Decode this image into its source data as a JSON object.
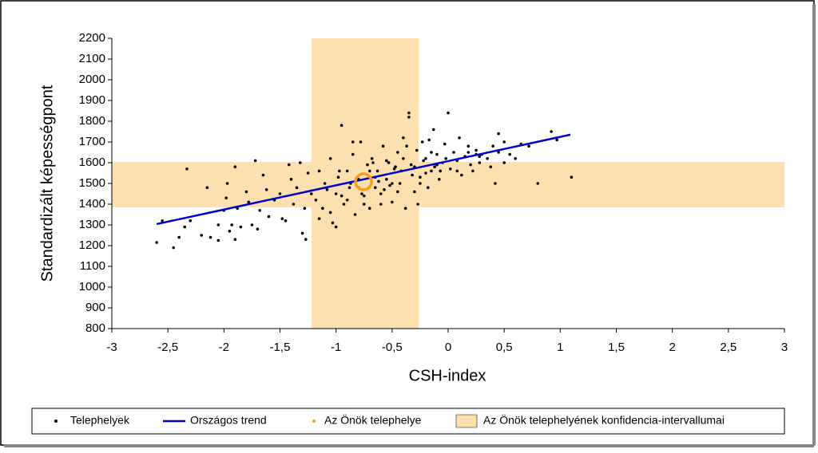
{
  "chart_data": {
    "type": "scatter",
    "xlabel": "CSH-index",
    "ylabel": "Standardizált képességpont",
    "xlim": [
      -3,
      3
    ],
    "ylim": [
      800,
      2200
    ],
    "xticks": [
      -3,
      {
        "value": -2.5,
        "label": "-2,5"
      },
      -2,
      {
        "value": -1.5,
        "label": "-1,5"
      },
      -1,
      {
        "value": -0.5,
        "label": "-0,5"
      },
      0,
      {
        "value": 0.5,
        "label": "0,5"
      },
      1,
      {
        "value": 1.5,
        "label": "1,5"
      },
      2,
      {
        "value": 2.5,
        "label": "2,5"
      },
      3
    ],
    "yticks": [
      800,
      900,
      1000,
      1100,
      1200,
      1300,
      1400,
      1500,
      1600,
      1700,
      1800,
      1900,
      2000,
      2100,
      2200
    ],
    "band": {
      "name": "Az Önök telephelyének konfidencia-intervallumai",
      "color": "#fde0b0",
      "x": [
        -1.22,
        -0.26
      ],
      "y": [
        1385,
        1604
      ]
    },
    "series": [
      {
        "name": "Telephelyek",
        "type": "scatter",
        "color": "#000000",
        "x": [
          -2.6,
          -2.55,
          -2.45,
          -2.4,
          -2.35,
          -2.33,
          -2.3,
          -2.2,
          -2.15,
          -2.12,
          -2.05,
          -2.05,
          -2.0,
          -1.98,
          -1.97,
          -1.95,
          -1.93,
          -1.9,
          -1.9,
          -1.88,
          -1.85,
          -1.8,
          -1.78,
          -1.75,
          -1.72,
          -1.7,
          -1.68,
          -1.65,
          -1.62,
          -1.6,
          -1.55,
          -1.5,
          -1.48,
          -1.45,
          -1.42,
          -1.4,
          -1.38,
          -1.35,
          -1.32,
          -1.3,
          -1.28,
          -1.27,
          -1.25,
          -1.22,
          -1.18,
          -1.15,
          -1.12,
          -1.1,
          -1.08,
          -1.05,
          -1.03,
          -1.0,
          -0.98,
          -0.95,
          -0.93,
          -0.9,
          -0.88,
          -0.85,
          -0.83,
          -0.8,
          -0.78,
          -0.75,
          -0.72,
          -0.7,
          -0.68,
          -0.65,
          -0.63,
          -0.6,
          -0.58,
          -0.55,
          -0.53,
          -0.5,
          -0.48,
          -0.45,
          -0.43,
          -0.4,
          -0.38,
          -0.35,
          -0.33,
          -0.3,
          -0.28,
          -0.25,
          -0.23,
          -0.2,
          -0.18,
          -0.15,
          -0.13,
          -0.1,
          -0.08,
          -0.05,
          -0.03,
          0.0,
          0.02,
          0.05,
          0.08,
          0.1,
          0.12,
          0.15,
          0.18,
          0.2,
          0.22,
          0.25,
          0.28,
          -1.15,
          -1.0,
          -0.9,
          -0.8,
          -0.7,
          -0.6,
          -0.5,
          -0.4,
          -0.3,
          -0.2,
          -0.1,
          -1.05,
          -0.95,
          -0.85,
          -0.75,
          -0.65,
          -0.55,
          -0.45,
          -0.35,
          -0.25,
          -0.15,
          -0.62,
          -0.52,
          -0.42,
          -0.32,
          -0.22,
          -0.12,
          -0.02,
          0.08,
          0.18,
          0.28,
          -0.97,
          -0.87,
          -0.77,
          -0.67,
          -0.57,
          -0.47,
          -0.37,
          -0.27,
          -0.17,
          -0.07,
          0.35,
          0.4,
          0.42,
          0.45,
          0.5,
          0.55,
          0.6,
          0.65,
          0.72,
          0.8,
          0.92,
          0.97,
          1.1,
          0.3,
          0.38,
          0.45,
          0.5,
          0.25
        ],
        "y": [
          1215,
          1320,
          1190,
          1240,
          1290,
          1570,
          1320,
          1250,
          1480,
          1240,
          1225,
          1300,
          1370,
          1430,
          1500,
          1270,
          1300,
          1580,
          1230,
          1380,
          1290,
          1460,
          1410,
          1300,
          1610,
          1280,
          1370,
          1540,
          1470,
          1340,
          1420,
          1450,
          1330,
          1320,
          1590,
          1520,
          1400,
          1480,
          1600,
          1260,
          1380,
          1230,
          1550,
          1450,
          1420,
          1560,
          1380,
          1500,
          1470,
          1620,
          1310,
          1450,
          1530,
          1780,
          1400,
          1560,
          1480,
          1640,
          1350,
          1520,
          1700,
          1440,
          1590,
          1380,
          1620,
          1480,
          1560,
          1450,
          1680,
          1520,
          1600,
          1410,
          1570,
          1650,
          1500,
          1720,
          1380,
          1840,
          1590,
          1460,
          1660,
          1530,
          1700,
          1620,
          1480,
          1560,
          1760,
          1640,
          1520,
          1600,
          1690,
          1840,
          1570,
          1650,
          1610,
          1720,
          1540,
          1630,
          1680,
          1590,
          1560,
          1640,
          1600,
          1330,
          1290,
          1420,
          1480,
          1560,
          1400,
          1500,
          1620,
          1580,
          1550,
          1590,
          1360,
          1440,
          1700,
          1400,
          1530,
          1610,
          1460,
          1820,
          1500,
          1650,
          1510,
          1490,
          1560,
          1540,
          1610,
          1580,
          1620,
          1560,
          1650,
          1630,
          1560,
          1500,
          1450,
          1600,
          1470,
          1580,
          1680,
          1400,
          1710,
          1560,
          1620,
          1680,
          1500,
          1650,
          1700,
          1640,
          1620,
          1690,
          1680,
          1500,
          1750,
          1710,
          1530,
          1640,
          1580,
          1740,
          1600,
          1660
        ]
      },
      {
        "name": "Országos trend",
        "type": "line",
        "color": "#0000cc",
        "x": [
          -2.6,
          1.09
        ],
        "y": [
          1304,
          1735
        ]
      },
      {
        "name": "Az Önök telephelye",
        "type": "marker",
        "color": "#f5a01a",
        "x": [
          -0.755
        ],
        "y": [
          1508
        ]
      }
    ]
  }
}
